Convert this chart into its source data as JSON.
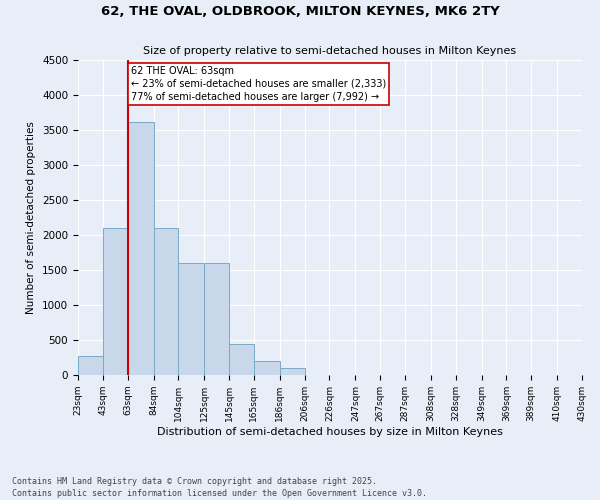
{
  "title": "62, THE OVAL, OLDBROOK, MILTON KEYNES, MK6 2TY",
  "subtitle": "Size of property relative to semi-detached houses in Milton Keynes",
  "xlabel": "Distribution of semi-detached houses by size in Milton Keynes",
  "ylabel": "Number of semi-detached properties",
  "footer": "Contains HM Land Registry data © Crown copyright and database right 2025.\nContains public sector information licensed under the Open Government Licence v3.0.",
  "property_label": "62 THE OVAL: 63sqm",
  "annotation_line1": "← 23% of semi-detached houses are smaller (2,333)",
  "annotation_line2": "77% of semi-detached houses are larger (7,992) →",
  "property_size": 63,
  "vline_color": "#cc0000",
  "annotation_box_edge_color": "#cc0000",
  "bar_color": "#c8d8ea",
  "bar_edge_color": "#7aaac8",
  "background_color": "#e8eef8",
  "grid_color": "#ffffff",
  "categories": [
    "23sqm",
    "43sqm",
    "63sqm",
    "84sqm",
    "104sqm",
    "125sqm",
    "145sqm",
    "165sqm",
    "186sqm",
    "206sqm",
    "226sqm",
    "247sqm",
    "267sqm",
    "287sqm",
    "308sqm",
    "328sqm",
    "349sqm",
    "369sqm",
    "389sqm",
    "410sqm",
    "430sqm"
  ],
  "bin_edges": [
    23,
    43,
    63,
    84,
    104,
    125,
    145,
    165,
    186,
    206,
    226,
    247,
    267,
    287,
    308,
    328,
    349,
    369,
    389,
    410,
    430
  ],
  "values": [
    270,
    2100,
    3620,
    2100,
    1600,
    1600,
    450,
    200,
    100,
    0,
    0,
    0,
    0,
    0,
    0,
    0,
    0,
    0,
    0,
    0
  ],
  "ylim": [
    0,
    4500
  ],
  "yticks": [
    0,
    500,
    1000,
    1500,
    2000,
    2500,
    3000,
    3500,
    4000,
    4500
  ]
}
